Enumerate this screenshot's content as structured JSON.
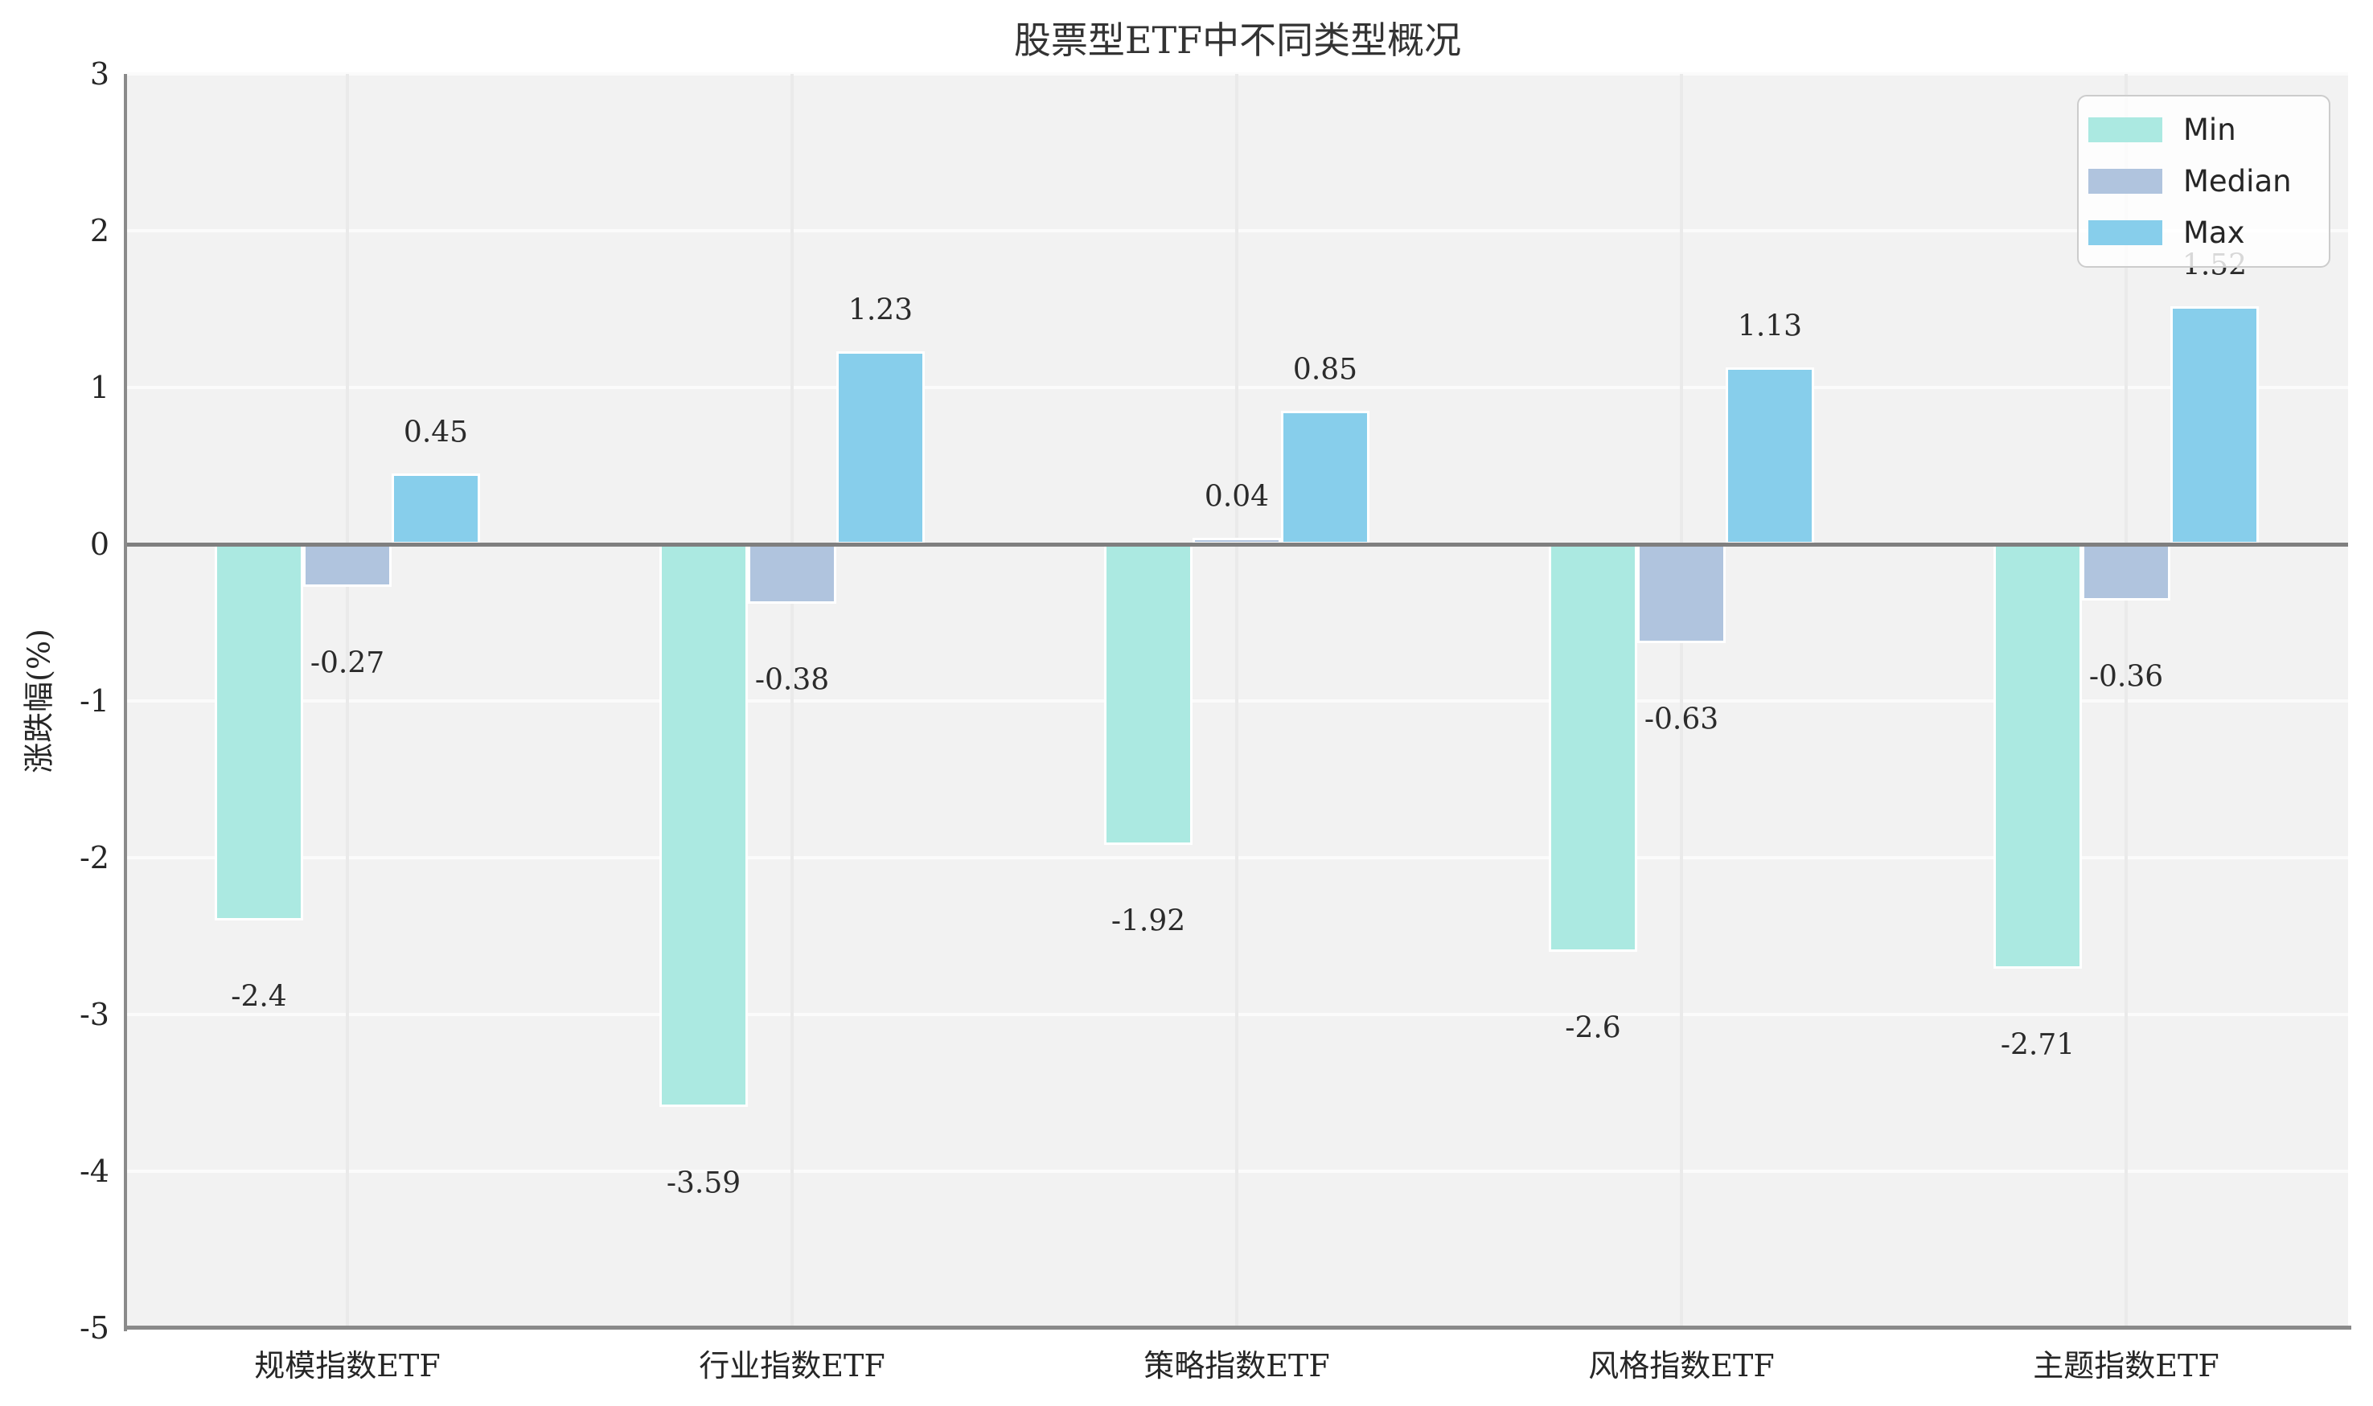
{
  "title": "股票型ETF中不同类型概况",
  "ylabel": "涨跌幅(%)",
  "legend": {
    "position": "upper right",
    "items": [
      {
        "label": "Min",
        "color": "#abe9e1"
      },
      {
        "label": "Median",
        "color": "#b0c4de"
      },
      {
        "label": "Max",
        "color": "#87ceeb"
      }
    ]
  },
  "axes": {
    "yticks": [
      "3",
      "2",
      "1",
      "0",
      "-1",
      "-2",
      "-3",
      "-4",
      "-5"
    ],
    "ytick_values": [
      3,
      2,
      1,
      0,
      -1,
      -2,
      -3,
      -4,
      -5
    ],
    "xticks": [
      "规模指数ETF",
      "行业指数ETF",
      "策略指数ETF",
      "风格指数ETF",
      "主题指数ETF"
    ]
  },
  "colors": {
    "plot_background": "#f2f2f2",
    "horizontal_grid": "#fbfbfb",
    "vertical_grid": "#eaeaea",
    "zero_line": "#7f7f7f",
    "spine": "#8a8a8a",
    "bar_edge": "#ffffff",
    "text": "#262626"
  },
  "chart_data": {
    "type": "bar",
    "title": "股票型ETF中不同类型概况",
    "xlabel": "",
    "ylabel": "涨跌幅(%)",
    "ylim": [
      -5,
      3
    ],
    "grid": true,
    "legend_position": "upper right",
    "bar_value_labels": true,
    "categories": [
      "规模指数ETF",
      "行业指数ETF",
      "策略指数ETF",
      "风格指数ETF",
      "主题指数ETF"
    ],
    "series": [
      {
        "name": "Min",
        "color": "#abe9e1",
        "values": [
          -2.4,
          -3.59,
          -1.92,
          -2.6,
          -2.71
        ]
      },
      {
        "name": "Median",
        "color": "#b0c4de",
        "values": [
          -0.27,
          -0.38,
          0.04,
          -0.63,
          -0.36
        ]
      },
      {
        "name": "Max",
        "color": "#87ceeb",
        "values": [
          0.45,
          1.23,
          0.85,
          1.13,
          1.52
        ]
      }
    ],
    "value_labels": {
      "Min": [
        "-2.4",
        "-3.59",
        "-1.92",
        "-2.6",
        "-2.71"
      ],
      "Median": [
        "-0.27",
        "-0.38",
        "0.04",
        "-0.63",
        "-0.36"
      ],
      "Max": [
        "0.45",
        "1.23",
        "0.85",
        "1.13",
        "1.52"
      ]
    }
  }
}
